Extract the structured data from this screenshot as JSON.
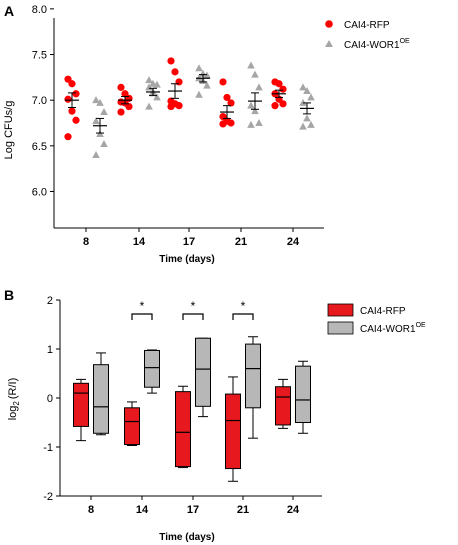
{
  "colors": {
    "red": "#ff0000",
    "gray": "#a6a6a6",
    "box_red": "#e8191e",
    "box_gray": "#b7b7b7"
  },
  "chart_data": [
    {
      "panel_label": "A",
      "type": "scatter",
      "xlabel": "Time (days)",
      "ylabel": "Log CFUs/g",
      "ylim": [
        5.6,
        7.9
      ],
      "yticks": [
        "8.0",
        "7.5",
        "7.0",
        "6.5",
        "6.0"
      ],
      "ytick_values": [
        8.0,
        7.5,
        7.0,
        6.5,
        6.0
      ],
      "categories": [
        "8",
        "14",
        "17",
        "21",
        "24"
      ],
      "legend_placement": "top-right",
      "series": [
        {
          "name": "CAI4-RFP",
          "marker": "circle",
          "color": "#ff0000",
          "points": [
            [
              7.23,
              7.18,
              7.07,
              7.01,
              6.88,
              6.78,
              6.6
            ],
            [
              7.14,
              7.07,
              7.02,
              6.98,
              6.97,
              6.93,
              6.87
            ],
            [
              7.43,
              7.31,
              7.2,
              6.99,
              6.96,
              6.94,
              6.93
            ],
            [
              7.2,
              7.03,
              6.97,
              6.82,
              6.77,
              6.75,
              6.74
            ],
            [
              7.2,
              7.18,
              7.12,
              7.07,
              7.01,
              6.96,
              6.94
            ]
          ],
          "mean": [
            7.0,
            7.0,
            7.1,
            6.87,
            7.07
          ],
          "sem": [
            0.08,
            0.04,
            0.08,
            0.07,
            0.04
          ]
        },
        {
          "name": "CAI4-WOR1",
          "name_sup": "OE",
          "marker": "triangle",
          "color": "#a6a6a6",
          "points": [
            [
              7.0,
              6.97,
              6.87,
              6.77,
              6.63,
              6.52,
              6.4
            ],
            [
              7.22,
              7.18,
              7.17,
              7.14,
              7.09,
              7.03,
              6.93
            ],
            [
              7.35,
              7.29,
              7.27,
              7.24,
              7.21,
              7.16,
              7.06
            ],
            [
              7.38,
              7.28,
              7.14,
              6.94,
              6.88,
              6.75,
              6.73
            ],
            [
              7.14,
              7.1,
              7.03,
              6.97,
              6.8,
              6.73,
              6.71
            ]
          ],
          "mean": [
            6.72,
            7.09,
            7.24,
            6.99,
            6.91
          ],
          "sem": [
            0.08,
            0.04,
            0.04,
            0.09,
            0.06
          ]
        }
      ]
    },
    {
      "panel_label": "B",
      "type": "box",
      "xlabel": "Time (days)",
      "ylabel": "log",
      "ylabel_sub": "2",
      "ylabel_tail": "(R/I)",
      "ylim": [
        -2,
        2
      ],
      "yticks": [
        "2",
        "1",
        "0",
        "-1",
        "-2"
      ],
      "ytick_values": [
        2,
        1,
        0,
        -1,
        -2
      ],
      "categories": [
        "8",
        "14",
        "17",
        "21",
        "24"
      ],
      "legend_placement": "top-right",
      "significance": [
        {
          "category_index": 1,
          "label": "*"
        },
        {
          "category_index": 2,
          "label": "*"
        },
        {
          "category_index": 3,
          "label": "*"
        }
      ],
      "series": [
        {
          "name": "CAI4-RFP",
          "color": "#e8191e",
          "boxes": [
            {
              "min": -0.87,
              "q1": -0.58,
              "median": 0.1,
              "q3": 0.3,
              "max": 0.38
            },
            {
              "min": -0.97,
              "q1": -0.95,
              "median": -0.48,
              "q3": -0.2,
              "max": -0.08
            },
            {
              "min": -1.42,
              "q1": -1.4,
              "median": -0.7,
              "q3": 0.13,
              "max": 0.24
            },
            {
              "min": -1.7,
              "q1": -1.44,
              "median": -0.46,
              "q3": 0.08,
              "max": 0.43
            },
            {
              "min": -0.62,
              "q1": -0.55,
              "median": 0.02,
              "q3": 0.23,
              "max": 0.38
            }
          ]
        },
        {
          "name": "CAI4-WOR1",
          "name_sup": "OE",
          "color": "#b7b7b7",
          "boxes": [
            {
              "min": -0.75,
              "q1": -0.72,
              "median": -0.18,
              "q3": 0.68,
              "max": 0.92
            },
            {
              "min": 0.1,
              "q1": 0.22,
              "median": 0.62,
              "q3": 0.97,
              "max": 0.98
            },
            {
              "min": -0.38,
              "q1": -0.17,
              "median": 0.59,
              "q3": 1.22,
              "max": 1.22
            },
            {
              "min": -0.82,
              "q1": -0.2,
              "median": 0.6,
              "q3": 1.1,
              "max": 1.25
            },
            {
              "min": -0.72,
              "q1": -0.5,
              "median": -0.04,
              "q3": 0.65,
              "max": 0.75
            }
          ]
        }
      ]
    }
  ]
}
